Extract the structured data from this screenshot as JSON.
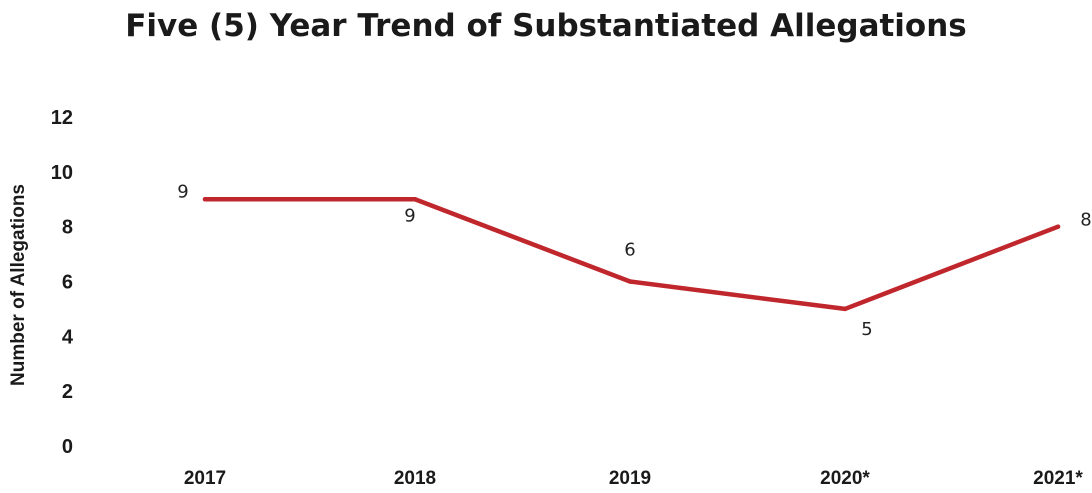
{
  "chart_data": {
    "type": "line",
    "title": "Five (5) Year Trend of Substantiated Allegations",
    "xlabel": "",
    "ylabel": "Number of Allegations",
    "categories": [
      "2017",
      "2018",
      "2019",
      "2020*",
      "2021*"
    ],
    "series": [
      {
        "values": [
          9,
          9,
          6,
          5,
          8
        ],
        "color": "#c0272d"
      }
    ],
    "data_labels": [
      "9",
      "9",
      "6",
      "5",
      "8"
    ],
    "yticks": [
      "0",
      "2",
      "4",
      "6",
      "8",
      "10",
      "12"
    ],
    "ylim": [
      0,
      12
    ],
    "grid": false,
    "legend": "none"
  }
}
